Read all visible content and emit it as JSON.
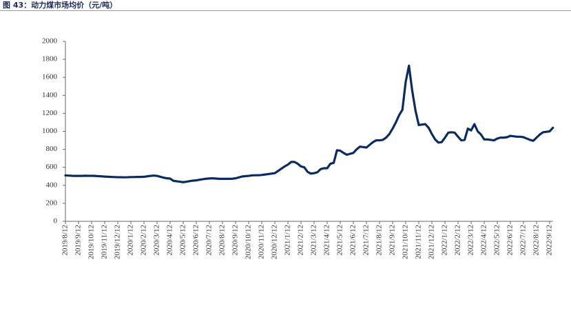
{
  "chart_data": {
    "type": "line",
    "title": "图 43：动力煤市场均价（元/吨）",
    "categories": [
      "2019/8/12",
      null,
      null,
      null,
      "2019/9/12",
      null,
      null,
      null,
      "2019/10/12",
      null,
      null,
      null,
      "2019/11/12",
      null,
      null,
      null,
      "2019/12/12",
      null,
      null,
      null,
      "2020/1/12",
      null,
      null,
      null,
      "2020/2/12",
      null,
      null,
      null,
      "2020/3/12",
      null,
      null,
      null,
      "2020/4/12",
      null,
      null,
      null,
      "2020/5/12",
      null,
      null,
      null,
      "2020/6/12",
      null,
      null,
      null,
      "2020/7/12",
      null,
      null,
      null,
      "2020/8/12",
      null,
      null,
      null,
      "2020/9/12",
      null,
      null,
      null,
      "2020/10/12",
      null,
      null,
      null,
      "2020/11/12",
      null,
      null,
      null,
      "2020/12/12",
      null,
      null,
      null,
      "2021/1/12",
      null,
      null,
      null,
      "2021/2/12",
      null,
      null,
      null,
      "2021/3/12",
      null,
      null,
      null,
      "2021/4/12",
      null,
      null,
      null,
      "2021/5/12",
      null,
      null,
      null,
      "2021/6/12",
      null,
      null,
      null,
      "2021/7/12",
      null,
      null,
      null,
      "2021/8/12",
      null,
      null,
      null,
      "2021/9/12",
      null,
      null,
      null,
      "2021/10/12",
      null,
      null,
      null,
      "2021/11/12",
      null,
      null,
      null,
      "2021/12/12",
      null,
      null,
      null,
      "2022/1/12",
      null,
      null,
      null,
      "2022/2/12",
      null,
      null,
      null,
      "2022/3/12",
      null,
      null,
      null,
      "2022/4/12",
      null,
      null,
      null,
      "2022/5/12",
      null,
      null,
      null,
      "2022/6/12",
      null,
      null,
      null,
      "2022/7/12",
      null,
      null,
      null,
      "2022/8/12",
      null,
      null,
      null,
      "2022/9/12",
      null
    ],
    "series": [
      {
        "color": "#0b2a60",
        "values": [
          510,
          508,
          506,
          505,
          505,
          505,
          507,
          506,
          506,
          505,
          502,
          500,
          497,
          495,
          493,
          492,
          490,
          490,
          489,
          490,
          492,
          492,
          493,
          493,
          495,
          500,
          505,
          508,
          505,
          495,
          485,
          478,
          475,
          450,
          445,
          440,
          435,
          440,
          447,
          452,
          455,
          462,
          468,
          473,
          476,
          478,
          475,
          472,
          472,
          472,
          472,
          473,
          478,
          488,
          498,
          502,
          505,
          510,
          512,
          512,
          515,
          520,
          525,
          530,
          535,
          560,
          585,
          610,
          630,
          660,
          660,
          640,
          610,
          600,
          550,
          530,
          535,
          545,
          580,
          590,
          590,
          640,
          650,
          790,
          785,
          760,
          740,
          750,
          760,
          800,
          830,
          825,
          820,
          850,
          880,
          900,
          900,
          905,
          930,
          970,
          1030,
          1100,
          1180,
          1240,
          1550,
          1730,
          1450,
          1230,
          1070,
          1075,
          1080,
          1040,
          970,
          910,
          875,
          880,
          930,
          985,
          990,
          985,
          940,
          900,
          905,
          1030,
          1010,
          1080,
          1000,
          965,
          910,
          910,
          905,
          900,
          920,
          930,
          930,
          935,
          950,
          945,
          940,
          940,
          935,
          920,
          905,
          895,
          930,
          965,
          990,
          995,
          1000,
          1040
        ]
      }
    ],
    "ylim": [
      0,
      2000
    ],
    "yticks": [
      0,
      200,
      400,
      600,
      800,
      1000,
      1200,
      1400,
      1600,
      1800,
      2000
    ],
    "grid": false
  }
}
